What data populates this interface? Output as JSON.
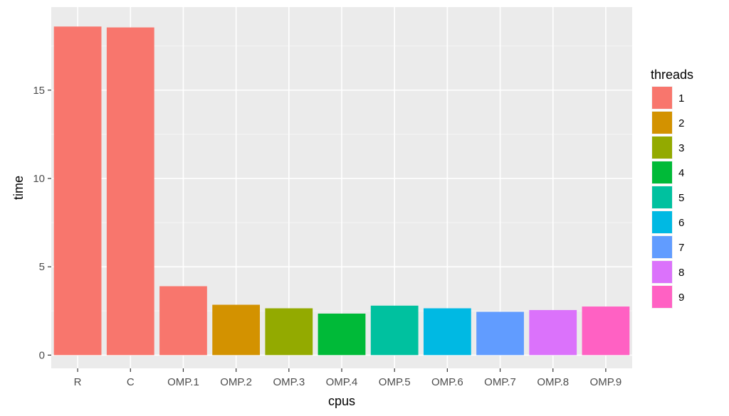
{
  "chart_data": {
    "type": "bar",
    "title": "",
    "xlabel": "cpus",
    "ylabel": "time",
    "categories": [
      "R",
      "C",
      "OMP.1",
      "OMP.2",
      "OMP.3",
      "OMP.4",
      "OMP.5",
      "OMP.6",
      "OMP.7",
      "OMP.8",
      "OMP.9"
    ],
    "values": [
      18.6,
      18.55,
      3.9,
      2.85,
      2.65,
      2.35,
      2.8,
      2.65,
      2.45,
      2.55,
      2.75
    ],
    "threads": [
      "1",
      "1",
      "1",
      "2",
      "3",
      "4",
      "5",
      "6",
      "7",
      "8",
      "9"
    ],
    "ylim": [
      -0.75,
      19.7
    ],
    "yticks": [
      0,
      5,
      10,
      15
    ],
    "grid": true,
    "legend": {
      "title": "threads",
      "position": "right",
      "entries": [
        {
          "label": "1",
          "color": "#F8766D"
        },
        {
          "label": "2",
          "color": "#D39200"
        },
        {
          "label": "3",
          "color": "#93AA00"
        },
        {
          "label": "4",
          "color": "#00BA38"
        },
        {
          "label": "5",
          "color": "#00C19F"
        },
        {
          "label": "6",
          "color": "#00B9E3"
        },
        {
          "label": "7",
          "color": "#619CFF"
        },
        {
          "label": "8",
          "color": "#DB72FB"
        },
        {
          "label": "9",
          "color": "#FF61C3"
        }
      ]
    }
  }
}
